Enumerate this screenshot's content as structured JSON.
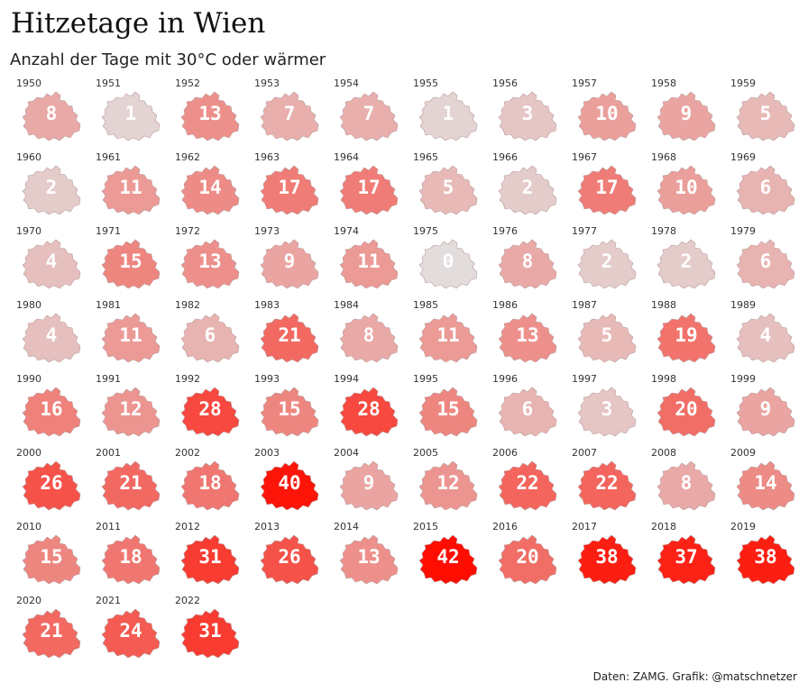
{
  "title": "Hitzetage in Wien",
  "subtitle": "Anzahl der Tage mit 30°C oder wärmer",
  "source": "Daten: ZAMG. Grafik: @matschnetzer",
  "colors": {
    "low": "#e2dcdc",
    "high": "#ff0d00",
    "stroke": "#b89a9a"
  },
  "chart_data": {
    "type": "heatmap",
    "title": "Hitzetage in Wien",
    "subtitle": "Anzahl der Tage mit 30°C oder wärmer",
    "value_range": [
      0,
      42
    ],
    "columns": 10,
    "cells": [
      {
        "year": "1950",
        "value": 8
      },
      {
        "year": "1951",
        "value": 1
      },
      {
        "year": "1952",
        "value": 13
      },
      {
        "year": "1953",
        "value": 7
      },
      {
        "year": "1954",
        "value": 7
      },
      {
        "year": "1955",
        "value": 1
      },
      {
        "year": "1956",
        "value": 3
      },
      {
        "year": "1957",
        "value": 10
      },
      {
        "year": "1958",
        "value": 9
      },
      {
        "year": "1959",
        "value": 5
      },
      {
        "year": "1960",
        "value": 2
      },
      {
        "year": "1961",
        "value": 11
      },
      {
        "year": "1962",
        "value": 14
      },
      {
        "year": "1963",
        "value": 17
      },
      {
        "year": "1964",
        "value": 17
      },
      {
        "year": "1965",
        "value": 5
      },
      {
        "year": "1966",
        "value": 2
      },
      {
        "year": "1967",
        "value": 17
      },
      {
        "year": "1968",
        "value": 10
      },
      {
        "year": "1969",
        "value": 6
      },
      {
        "year": "1970",
        "value": 4
      },
      {
        "year": "1971",
        "value": 15
      },
      {
        "year": "1972",
        "value": 13
      },
      {
        "year": "1973",
        "value": 9
      },
      {
        "year": "1974",
        "value": 11
      },
      {
        "year": "1975",
        "value": 0
      },
      {
        "year": "1976",
        "value": 8
      },
      {
        "year": "1977",
        "value": 2
      },
      {
        "year": "1978",
        "value": 2
      },
      {
        "year": "1979",
        "value": 6
      },
      {
        "year": "1980",
        "value": 4
      },
      {
        "year": "1981",
        "value": 11
      },
      {
        "year": "1982",
        "value": 6
      },
      {
        "year": "1983",
        "value": 21
      },
      {
        "year": "1984",
        "value": 8
      },
      {
        "year": "1985",
        "value": 11
      },
      {
        "year": "1986",
        "value": 13
      },
      {
        "year": "1987",
        "value": 5
      },
      {
        "year": "1988",
        "value": 19
      },
      {
        "year": "1989",
        "value": 4
      },
      {
        "year": "1990",
        "value": 16
      },
      {
        "year": "1991",
        "value": 12
      },
      {
        "year": "1992",
        "value": 28
      },
      {
        "year": "1993",
        "value": 15
      },
      {
        "year": "1994",
        "value": 28
      },
      {
        "year": "1995",
        "value": 15
      },
      {
        "year": "1996",
        "value": 6
      },
      {
        "year": "1997",
        "value": 3
      },
      {
        "year": "1998",
        "value": 20
      },
      {
        "year": "1999",
        "value": 9
      },
      {
        "year": "2000",
        "value": 26
      },
      {
        "year": "2001",
        "value": 21
      },
      {
        "year": "2002",
        "value": 18
      },
      {
        "year": "2003",
        "value": 40
      },
      {
        "year": "2004",
        "value": 9
      },
      {
        "year": "2005",
        "value": 12
      },
      {
        "year": "2006",
        "value": 22
      },
      {
        "year": "2007",
        "value": 22
      },
      {
        "year": "2008",
        "value": 8
      },
      {
        "year": "2009",
        "value": 14
      },
      {
        "year": "2010",
        "value": 15
      },
      {
        "year": "2011",
        "value": 18
      },
      {
        "year": "2012",
        "value": 31
      },
      {
        "year": "2013",
        "value": 26
      },
      {
        "year": "2014",
        "value": 13
      },
      {
        "year": "2015",
        "value": 42
      },
      {
        "year": "2016",
        "value": 20
      },
      {
        "year": "2017",
        "value": 38
      },
      {
        "year": "2018",
        "value": 37
      },
      {
        "year": "2019",
        "value": 38
      },
      {
        "year": "2020",
        "value": 21
      },
      {
        "year": "2021",
        "value": 24
      },
      {
        "year": "2022",
        "value": 31
      }
    ]
  }
}
